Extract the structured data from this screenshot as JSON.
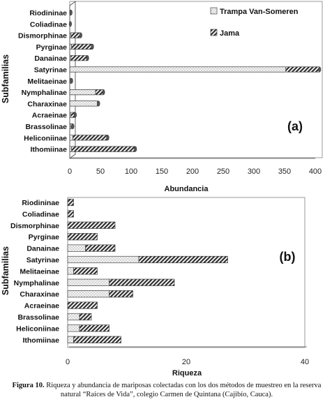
{
  "chart_data": [
    {
      "type": "bar",
      "orientation": "horizontal",
      "stacked": true,
      "panel_label": "(a)",
      "xlabel": "Abundancia",
      "ylabel": "Subfamilias",
      "xlim": [
        0,
        400
      ],
      "xticks": [
        "0",
        "50",
        "100",
        "150",
        "200",
        "250",
        "300",
        "350",
        "400"
      ],
      "categories": [
        "Riodininae",
        "Coliadinae",
        "Dismorphinae",
        "Pyrginae",
        "Danainae",
        "Satyrinae",
        "Melitaeinae",
        "Nymphalinae",
        "Charaxinae",
        "Acraeinae",
        "Brassolinae",
        "Heliconiinae",
        "Ithomiinae"
      ],
      "series": [
        {
          "name": "Trampa Van-Someren",
          "values": [
            1,
            1,
            2,
            3,
            2,
            352,
            1,
            42,
            45,
            2,
            2,
            5,
            3
          ]
        },
        {
          "name": "Jama",
          "values": [
            1,
            0,
            16,
            34,
            27,
            55,
            2,
            13,
            2,
            7,
            3,
            57,
            104
          ]
        }
      ],
      "legend_position": "top-right",
      "grid": false
    },
    {
      "type": "bar",
      "orientation": "horizontal",
      "stacked": true,
      "panel_label": "(b)",
      "xlabel": "Riqueza",
      "ylabel": "Subfamilias",
      "xlim": [
        0,
        40
      ],
      "xticks": [
        "0",
        "20",
        "40"
      ],
      "categories": [
        "Riodininae",
        "Coliadinae",
        "Dismorphinae",
        "Pyrginae",
        "Danainae",
        "Satyrinae",
        "Melitaeinae",
        "Nymphalinae",
        "Charaxinae",
        "Acraeinae",
        "Brassolinae",
        "Heliconiinae",
        "Ithomiinae"
      ],
      "series": [
        {
          "name": "Trampa Van-Someren",
          "values": [
            0,
            0,
            0,
            0,
            3,
            12,
            1,
            7,
            7,
            0,
            2,
            2,
            1
          ]
        },
        {
          "name": "Jama",
          "values": [
            1,
            1,
            8,
            5,
            5,
            15,
            4,
            11,
            4,
            5,
            2,
            5,
            8
          ]
        }
      ],
      "grid": false
    }
  ],
  "caption": {
    "label": "Figura 10.",
    "text": "Riqueza y abundancia de mariposas colectadas con los dos métodos de muestreo en la reserva natural “Raíces de Vida”, colegio Carmen de Quintana (Cajibío, Cauca)."
  },
  "colors": {
    "van_someren_fill": "#f4f4f4",
    "jama_fill": "#3c3c3c",
    "frame": "#999999"
  }
}
